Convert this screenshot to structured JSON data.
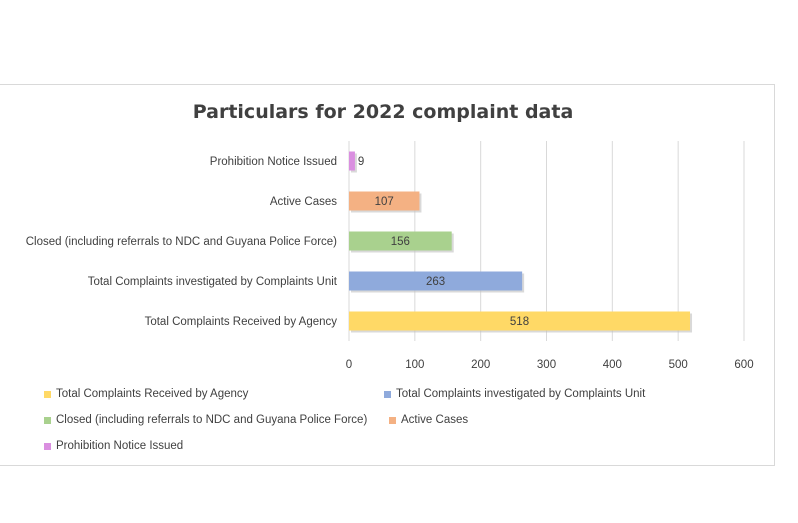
{
  "chart_data": {
    "type": "bar",
    "orientation": "horizontal",
    "title": "Particulars for 2022 complaint data",
    "categories": [
      "Total Complaints Received by Agency",
      "Total Complaints investigated by Complaints Unit",
      "Closed (including referrals to NDC and Guyana Police Force)",
      "Active Cases",
      "Prohibition Notice Issued"
    ],
    "values": [
      518,
      263,
      156,
      107,
      9
    ],
    "colors": [
      "#ffd966",
      "#8faadc",
      "#a9d18e",
      "#f4b183",
      "#da8fe0"
    ],
    "xlim": [
      0,
      600
    ],
    "xticks": [
      0,
      100,
      200,
      300,
      400,
      500,
      600
    ],
    "grid": true,
    "legend_position": "bottom",
    "legend": [
      "Total Complaints Received by Agency",
      "Total Complaints investigated by Complaints Unit",
      "Closed (including referrals to NDC and Guyana Police Force)",
      "Active Cases",
      "Prohibition Notice Issued"
    ]
  }
}
